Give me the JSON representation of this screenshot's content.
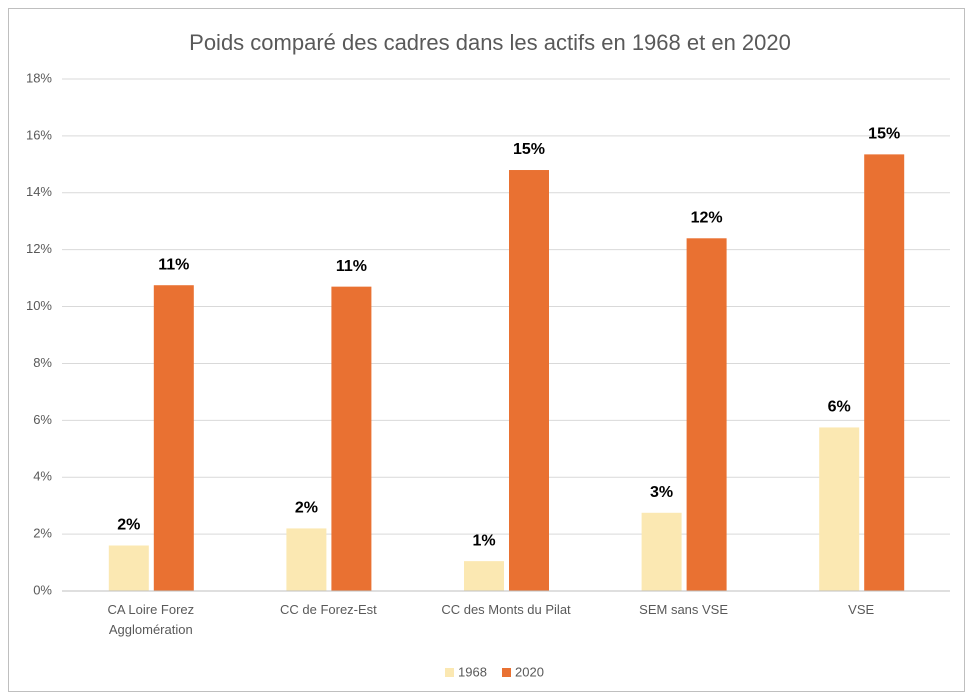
{
  "chart_data": {
    "type": "bar",
    "title": "Poids comparé des cadres dans les actifs en 1968 et en 2020",
    "categories": [
      "CA Loire Forez Agglomération",
      "CC de Forez-Est",
      "CC des Monts du Pilat",
      "SEM sans VSE",
      "VSE"
    ],
    "series": [
      {
        "name": "1968",
        "color": "#fbe8b2",
        "values": [
          1.6,
          2.2,
          1.05,
          2.75,
          5.75
        ],
        "value_labels": [
          "2%",
          "2%",
          "1%",
          "3%",
          "6%"
        ]
      },
      {
        "name": "2020",
        "color": "#e97132",
        "values": [
          10.75,
          10.7,
          14.8,
          12.4,
          15.35
        ],
        "value_labels": [
          "11%",
          "11%",
          "15%",
          "12%",
          "15%"
        ]
      }
    ],
    "ylim": [
      0,
      18
    ],
    "yticks": [
      {
        "value": 0,
        "label": "0%"
      },
      {
        "value": 2,
        "label": "2%"
      },
      {
        "value": 4,
        "label": "4%"
      },
      {
        "value": 6,
        "label": "6%"
      },
      {
        "value": 8,
        "label": "8%"
      },
      {
        "value": 10,
        "label": "10%"
      },
      {
        "value": 12,
        "label": "12%"
      },
      {
        "value": 14,
        "label": "14%"
      },
      {
        "value": 16,
        "label": "16%"
      },
      {
        "value": 18,
        "label": "18%"
      }
    ],
    "grid": true,
    "legend": "bottom"
  }
}
